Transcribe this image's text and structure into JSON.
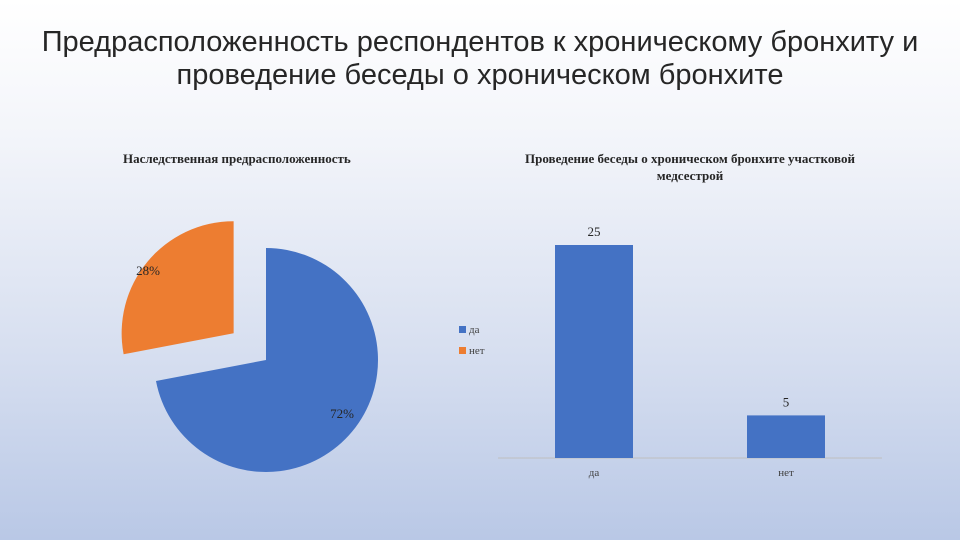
{
  "slide": {
    "title": "Предрасположенность респондентов к хроническому бронхиту и проведение беседы о хроническом бронхите"
  },
  "chart_data": [
    {
      "type": "pie",
      "title": "Наследственная предрасположенность",
      "categories": [
        "да",
        "нет"
      ],
      "values": [
        72,
        28
      ],
      "labels": [
        "72%",
        "28%"
      ],
      "colors": [
        "#4472C4",
        "#ED7D31"
      ],
      "exploded": true,
      "legend": {
        "position": "right",
        "entries": [
          "да",
          "нет"
        ]
      }
    },
    {
      "type": "bar",
      "title": "Проведение беседы о хроническом бронхите участковой медсестрой",
      "categories": [
        "да",
        "нет"
      ],
      "values": [
        25,
        5
      ],
      "data_labels": [
        "25",
        "5"
      ],
      "colors": [
        "#4472C4"
      ],
      "ylim": [
        0,
        25
      ],
      "grid": false,
      "legend": "none"
    }
  ]
}
